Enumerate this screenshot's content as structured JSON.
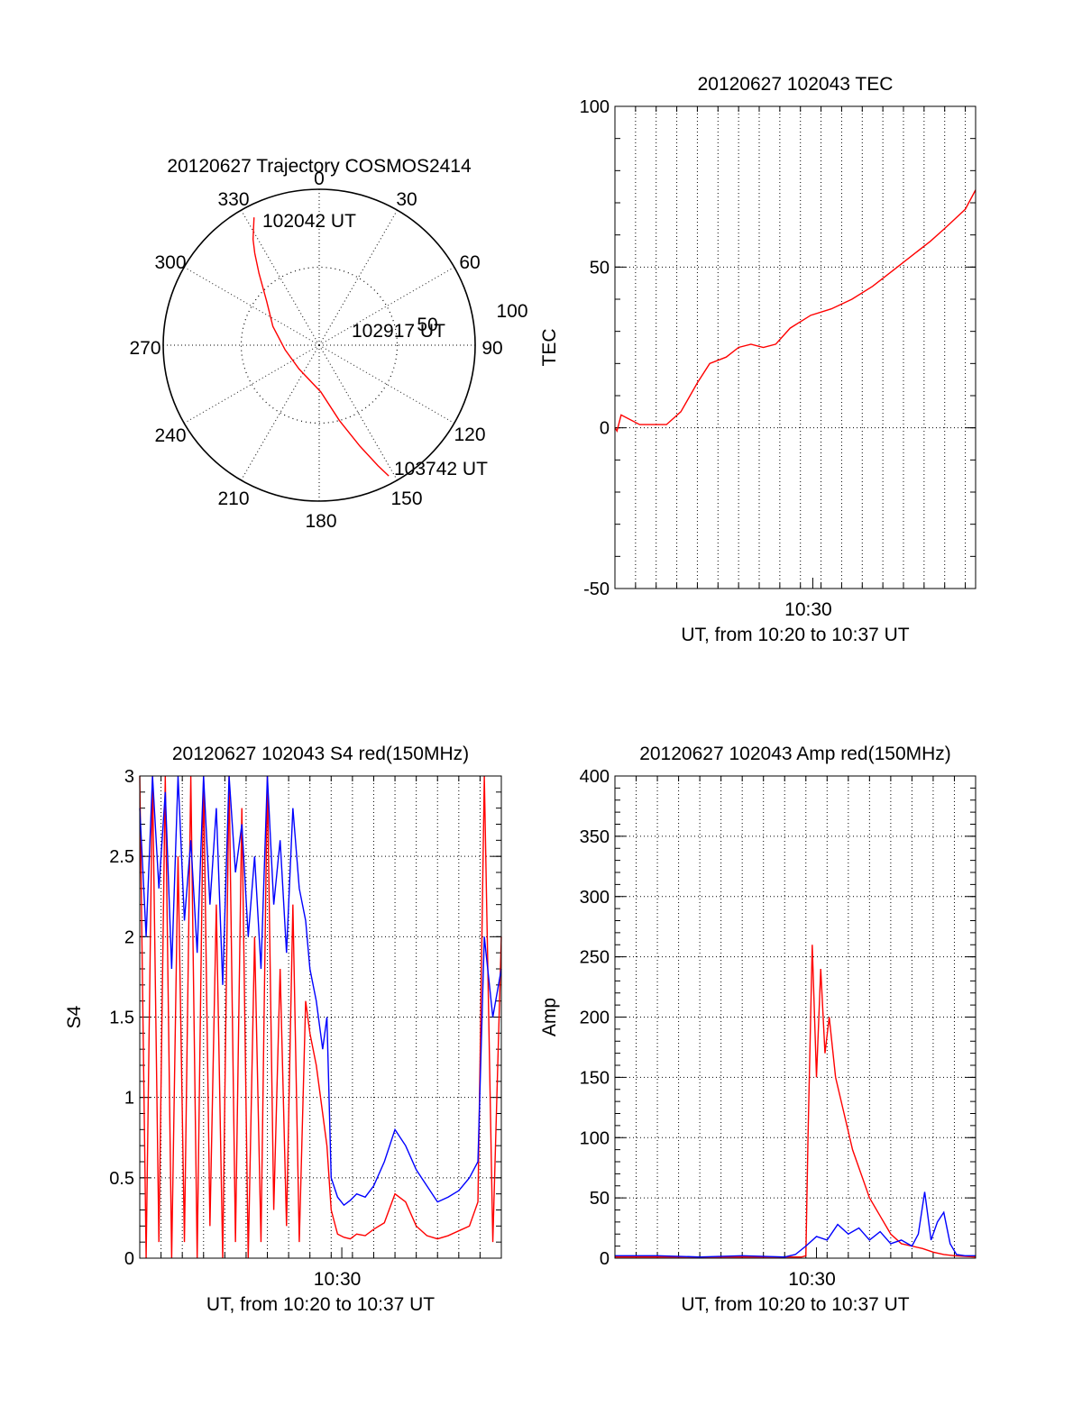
{
  "chart_data": [
    {
      "id": "polar",
      "type": "polar-trajectory",
      "title": "20120627 Trajectory COSMOS2414",
      "angle_labels": [
        "0",
        "30",
        "60",
        "90",
        "120",
        "150",
        "180",
        "210",
        "240",
        "270",
        "300",
        "330"
      ],
      "ring_labels": [
        "50",
        "100"
      ],
      "elevation_max": 100,
      "trajectory": [
        [
          333,
          92
        ],
        [
          328,
          80
        ],
        [
          325,
          72
        ],
        [
          320,
          60
        ],
        [
          310,
          44
        ],
        [
          292,
          32
        ],
        [
          262,
          22
        ],
        [
          220,
          20
        ],
        [
          178,
          30
        ],
        [
          165,
          50
        ],
        [
          158,
          70
        ],
        [
          154,
          86
        ],
        [
          152,
          95
        ]
      ],
      "points": [
        {
          "label": "102042 UT",
          "az": 333,
          "r": 92
        },
        {
          "label": "102917 UT",
          "az": 80,
          "r": 24
        },
        {
          "label": "103742 UT",
          "az": 152,
          "r": 95
        }
      ],
      "line_color": "#ff0000"
    },
    {
      "id": "tec",
      "type": "line",
      "title": "20120627 102043 TEC",
      "ylabel": "TEC",
      "xlabel": "UT, from 10:20 to 10:37 UT",
      "xtick_labels": [
        "10:30"
      ],
      "yticks": [
        "-50",
        "0",
        "50",
        "100"
      ],
      "ylim": [
        -50,
        100
      ],
      "series": [
        {
          "color": "#ff0000",
          "x": [
            0,
            0.1,
            0.3,
            1.2,
            1.8,
            2.5,
            3.2,
            4.0,
            4.6,
            5.4,
            6.0,
            6.6,
            7.2,
            7.8,
            8.5,
            9.0,
            9.5,
            10.5,
            11.5,
            12.5,
            13.5,
            14.5,
            15.3,
            16.0,
            16.5,
            17.0,
            17.5
          ],
          "y": [
            0,
            -1,
            4,
            1,
            1,
            1,
            5,
            14,
            20,
            22,
            25,
            26,
            25,
            26,
            31,
            33,
            35,
            37,
            40,
            44,
            49,
            54,
            58,
            62,
            65,
            68,
            74
          ]
        }
      ]
    },
    {
      "id": "s4",
      "type": "line",
      "title": "20120627 102043 S4 red(150MHz)",
      "ylabel": "S4",
      "xlabel": "UT, from 10:20 to 10:37 UT",
      "xtick_labels": [
        "10:30"
      ],
      "yticks": [
        "0",
        "0.5",
        "1",
        "1.5",
        "2",
        "2.5",
        "3"
      ],
      "ylim": [
        0,
        3
      ],
      "series": [
        {
          "color": "#ff0000",
          "x": [
            0,
            0.3,
            0.6,
            0.9,
            1.2,
            1.5,
            1.8,
            2.1,
            2.4,
            2.7,
            3.0,
            3.3,
            3.6,
            3.9,
            4.2,
            4.5,
            4.8,
            5.1,
            5.4,
            5.7,
            6.0,
            6.3,
            6.6,
            6.9,
            7.2,
            7.5,
            7.8,
            8.0,
            8.3,
            8.6,
            8.8,
            9.0,
            9.3,
            9.6,
            9.9,
            10.2,
            10.6,
            11.0,
            11.5,
            12.0,
            12.5,
            13.0,
            13.5,
            14.0,
            14.5,
            15.0,
            15.5,
            15.9,
            16.2,
            16.6,
            17.0
          ],
          "y": [
            3,
            0.0,
            3,
            0.1,
            3,
            0.0,
            2.5,
            0.1,
            3,
            0.0,
            3,
            0.2,
            2.2,
            0.0,
            3,
            0.1,
            2.8,
            0.0,
            2.0,
            0.1,
            3,
            0.3,
            1.8,
            0.2,
            2.2,
            0.1,
            1.6,
            1.4,
            1.2,
            0.9,
            0.7,
            0.3,
            0.15,
            0.13,
            0.12,
            0.15,
            0.14,
            0.18,
            0.22,
            0.4,
            0.35,
            0.2,
            0.14,
            0.12,
            0.14,
            0.17,
            0.2,
            0.35,
            3,
            0.1,
            2.0
          ]
        },
        {
          "color": "#0000ff",
          "x": [
            0,
            0.3,
            0.6,
            0.9,
            1.2,
            1.5,
            1.8,
            2.1,
            2.4,
            2.7,
            3.0,
            3.3,
            3.6,
            3.9,
            4.2,
            4.5,
            4.8,
            5.1,
            5.4,
            5.7,
            6.0,
            6.3,
            6.6,
            6.9,
            7.2,
            7.5,
            7.8,
            8.0,
            8.3,
            8.6,
            8.8,
            9.0,
            9.3,
            9.6,
            9.9,
            10.2,
            10.6,
            11.0,
            11.5,
            12.0,
            12.5,
            13.0,
            13.5,
            14.0,
            14.5,
            15.0,
            15.5,
            15.9,
            16.2,
            16.6,
            17.0
          ],
          "y": [
            2.8,
            2.0,
            3,
            2.3,
            2.9,
            1.8,
            3,
            2.1,
            2.6,
            1.9,
            3,
            2.2,
            2.8,
            1.7,
            3,
            2.4,
            2.7,
            2.0,
            2.5,
            1.8,
            3,
            2.2,
            2.6,
            1.9,
            2.8,
            2.3,
            2.1,
            1.8,
            1.6,
            1.3,
            1.5,
            0.5,
            0.38,
            0.33,
            0.36,
            0.4,
            0.38,
            0.45,
            0.6,
            0.8,
            0.7,
            0.55,
            0.45,
            0.35,
            0.38,
            0.42,
            0.5,
            0.6,
            2.0,
            1.5,
            1.8
          ]
        }
      ]
    },
    {
      "id": "amp",
      "type": "line",
      "title": "20120627 102043 Amp red(150MHz)",
      "ylabel": "Amp",
      "xlabel": "UT, from 10:20 to 10:37 UT",
      "xtick_labels": [
        "10:30"
      ],
      "yticks": [
        "0",
        "50",
        "100",
        "150",
        "200",
        "250",
        "300",
        "350",
        "400"
      ],
      "ylim": [
        0,
        400
      ],
      "series": [
        {
          "color": "#ff0000",
          "x": [
            0,
            2,
            4,
            6,
            8,
            8.8,
            9.0,
            9.1,
            9.3,
            9.5,
            9.7,
            9.9,
            10.1,
            10.4,
            10.8,
            11.2,
            11.6,
            12.0,
            12.5,
            13.0,
            13.5,
            14.0,
            14.5,
            15.0,
            15.5,
            16.0,
            17.0
          ],
          "y": [
            1,
            1,
            1,
            1,
            1,
            1,
            2,
            100,
            260,
            150,
            240,
            170,
            200,
            150,
            120,
            90,
            70,
            50,
            35,
            20,
            12,
            10,
            8,
            5,
            3,
            2,
            1
          ]
        },
        {
          "color": "#0000ff",
          "x": [
            0,
            2,
            4,
            6,
            8,
            8.5,
            9.0,
            9.5,
            10.0,
            10.5,
            11.0,
            11.5,
            12.0,
            12.5,
            13.0,
            13.5,
            14.0,
            14.3,
            14.6,
            14.9,
            15.2,
            15.5,
            15.8,
            16.1,
            16.5,
            17.0
          ],
          "y": [
            2,
            2,
            1,
            2,
            1,
            3,
            10,
            18,
            15,
            28,
            20,
            25,
            15,
            22,
            12,
            15,
            10,
            20,
            55,
            15,
            30,
            38,
            12,
            3,
            2,
            2
          ]
        }
      ]
    }
  ]
}
